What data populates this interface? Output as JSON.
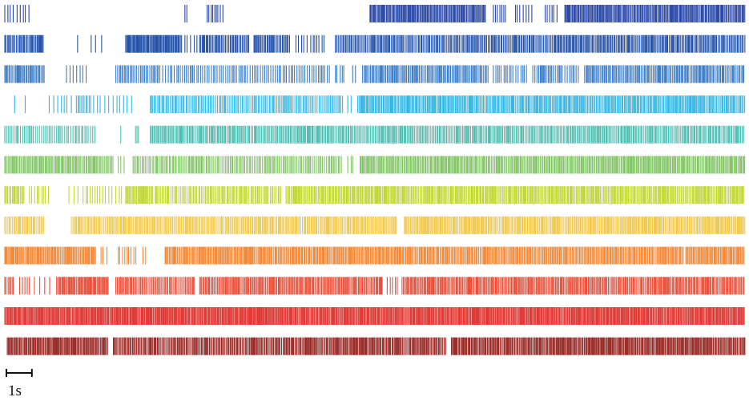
{
  "chart_data": {
    "type": "raster",
    "title": "",
    "xlabel": "",
    "ylabel": "",
    "time_range_s": [
      0,
      30
    ],
    "scale_bar": {
      "value_s": 1,
      "label": "1s"
    },
    "rows": [
      {
        "color": "#2c4aa8",
        "bursts": [
          [
            0.0,
            1.05,
            0.11
          ],
          [
            7.3,
            7.4,
            0.06
          ],
          [
            8.2,
            8.9,
            0.08
          ],
          [
            14.8,
            19.5,
            0.04
          ],
          [
            19.8,
            20.3,
            0.09
          ],
          [
            20.7,
            21.4,
            0.1
          ],
          [
            21.9,
            22.4,
            0.1
          ],
          [
            22.7,
            30.0,
            0.04
          ]
        ]
      },
      {
        "color": "#2653a8",
        "bursts": [
          [
            0.0,
            1.6,
            0.05
          ],
          [
            2.95,
            3.0,
            0.3
          ],
          [
            3.5,
            4.0,
            0.18
          ],
          [
            4.9,
            7.2,
            0.035
          ],
          [
            7.3,
            7.8,
            0.13
          ],
          [
            7.9,
            9.9,
            0.05
          ],
          [
            10.1,
            11.6,
            0.05
          ],
          [
            11.8,
            12.3,
            0.12
          ],
          [
            12.4,
            13.0,
            0.1
          ],
          [
            13.4,
            30.0,
            0.05
          ]
        ]
      },
      {
        "color": "#3d7ec6",
        "bursts": [
          [
            0.0,
            1.6,
            0.05
          ],
          [
            2.5,
            3.3,
            0.1
          ],
          [
            4.5,
            6.3,
            0.06
          ],
          [
            6.4,
            13.2,
            0.08
          ],
          [
            13.4,
            13.8,
            0.1
          ],
          [
            14.1,
            14.3,
            0.1
          ],
          [
            14.5,
            19.6,
            0.05
          ],
          [
            19.8,
            21.2,
            0.09
          ],
          [
            21.4,
            22.6,
            0.06
          ],
          [
            22.7,
            23.3,
            0.08
          ],
          [
            23.5,
            30.0,
            0.05
          ]
        ]
      },
      {
        "color": "#38b7e2",
        "bursts": [
          [
            0.4,
            0.9,
            0.3
          ],
          [
            1.8,
            2.7,
            0.13
          ],
          [
            2.9,
            3.5,
            0.07
          ],
          [
            3.6,
            5.3,
            0.17
          ],
          [
            5.9,
            13.7,
            0.06
          ],
          [
            13.9,
            14.1,
            0.1
          ],
          [
            14.3,
            30.0,
            0.045
          ]
        ]
      },
      {
        "color": "#4fbdb2",
        "bursts": [
          [
            0.0,
            3.7,
            0.07
          ],
          [
            4.7,
            4.8,
            0.1
          ],
          [
            5.3,
            5.45,
            0.1
          ],
          [
            5.9,
            30.0,
            0.05
          ]
        ]
      },
      {
        "color": "#82c466",
        "bursts": [
          [
            0.0,
            4.4,
            0.045
          ],
          [
            4.6,
            4.9,
            0.1
          ],
          [
            5.2,
            13.7,
            0.06
          ],
          [
            13.9,
            14.2,
            0.1
          ],
          [
            14.4,
            30.0,
            0.045
          ]
        ]
      },
      {
        "color": "#c2d635",
        "bursts": [
          [
            0.0,
            0.8,
            0.05
          ],
          [
            1.0,
            1.8,
            0.1
          ],
          [
            2.6,
            3.2,
            0.15
          ],
          [
            3.3,
            4.4,
            0.1
          ],
          [
            4.5,
            4.8,
            0.1
          ],
          [
            4.9,
            6.0,
            0.04
          ],
          [
            6.1,
            11.2,
            0.06
          ],
          [
            11.4,
            30.0,
            0.045
          ]
        ]
      },
      {
        "color": "#f2c84b",
        "bursts": [
          [
            0.0,
            1.6,
            0.05
          ],
          [
            2.7,
            15.9,
            0.05
          ],
          [
            16.2,
            30.0,
            0.045
          ]
        ]
      },
      {
        "color": "#f08a3a",
        "bursts": [
          [
            0.0,
            3.7,
            0.04
          ],
          [
            3.9,
            4.2,
            0.12
          ],
          [
            4.6,
            5.4,
            0.1
          ],
          [
            5.6,
            5.8,
            0.1
          ],
          [
            6.5,
            27.5,
            0.045
          ],
          [
            27.6,
            30.0,
            0.04
          ]
        ]
      },
      {
        "color": "#e8503a",
        "bursts": [
          [
            0.0,
            0.4,
            0.07
          ],
          [
            0.6,
            1.0,
            0.08
          ],
          [
            1.2,
            1.9,
            0.15
          ],
          [
            2.1,
            4.2,
            0.04
          ],
          [
            4.5,
            7.7,
            0.05
          ],
          [
            7.9,
            15.3,
            0.045
          ],
          [
            15.5,
            16.0,
            0.1
          ],
          [
            16.1,
            30.0,
            0.045
          ]
        ]
      },
      {
        "color": "#e03b36",
        "bursts": [
          [
            0.0,
            30.0,
            0.035
          ]
        ]
      },
      {
        "color": "#9a2e2a",
        "bursts": [
          [
            0.1,
            4.2,
            0.04
          ],
          [
            4.4,
            17.9,
            0.045
          ],
          [
            18.1,
            30.0,
            0.04
          ]
        ]
      }
    ]
  }
}
